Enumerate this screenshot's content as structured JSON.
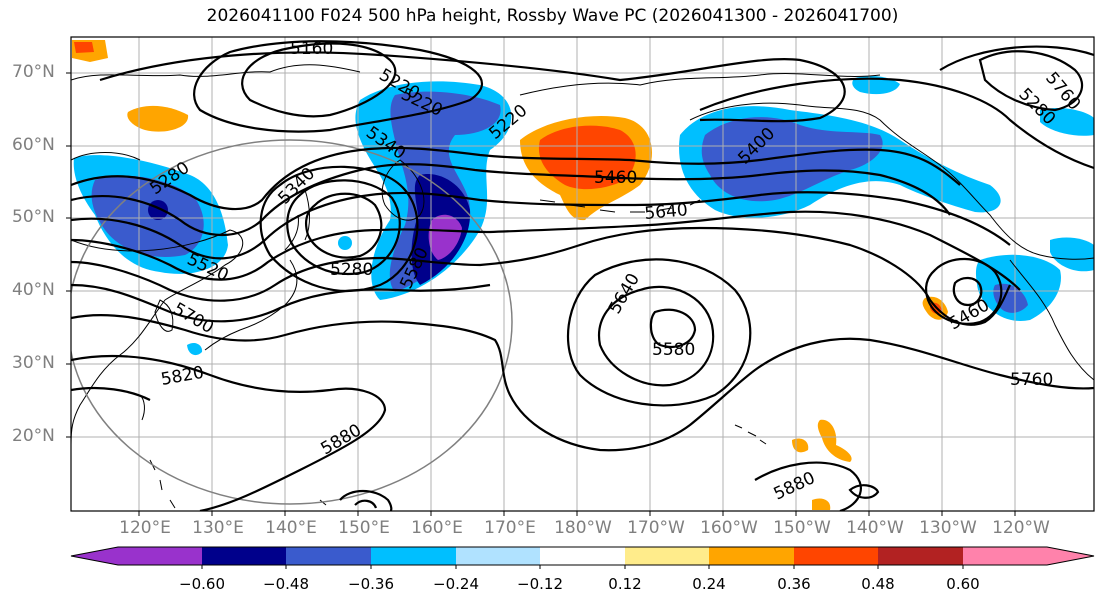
{
  "title": "2026041100 F024 500 hPa height, Rossby Wave PC (2026041300 - 2026041700)",
  "lat_labels": [
    "70°N",
    "60°N",
    "50°N",
    "40°N",
    "30°N",
    "20°N"
  ],
  "lon_labels": [
    "120°E",
    "130°E",
    "140°E",
    "150°E",
    "160°E",
    "170°E",
    "180°W",
    "170°W",
    "160°W",
    "150°W",
    "140°W",
    "130°W",
    "120°W"
  ],
  "contour_labels": [
    "5160",
    "5220",
    "5340",
    "5220",
    "5280",
    "5340",
    "5460",
    "5400",
    "5640",
    "5280",
    "5520",
    "5580",
    "5280",
    "5700",
    "5820",
    "5640",
    "5580",
    "5880",
    "5460",
    "5760",
    "5880",
    "5760",
    "5220"
  ],
  "colorbar": {
    "ticks": [
      "−0.60",
      "−0.48",
      "−0.36",
      "−0.24",
      "−0.12",
      "0.12",
      "0.24",
      "0.36",
      "0.48",
      "0.60"
    ],
    "colors": [
      "#9932cc",
      "#00008b",
      "#3a5bcd",
      "#00bfff",
      "#b0e2ff",
      "#ffffff",
      "#ffec8b",
      "#ffa500",
      "#ff4500",
      "#b22222",
      "#ff82ab"
    ]
  },
  "colors": {
    "purple": "#9932cc",
    "navy": "#00008b",
    "royal": "#3a5bcd",
    "sky": "#00bfff",
    "pale": "#b0e2ff",
    "yellow": "#ffec8b",
    "orange": "#ffa500",
    "redorange": "#ff4500",
    "firebrick": "#b22222",
    "pink": "#ff82ab",
    "grid": "#b0b0b0",
    "tick": "#7f7f7f"
  }
}
